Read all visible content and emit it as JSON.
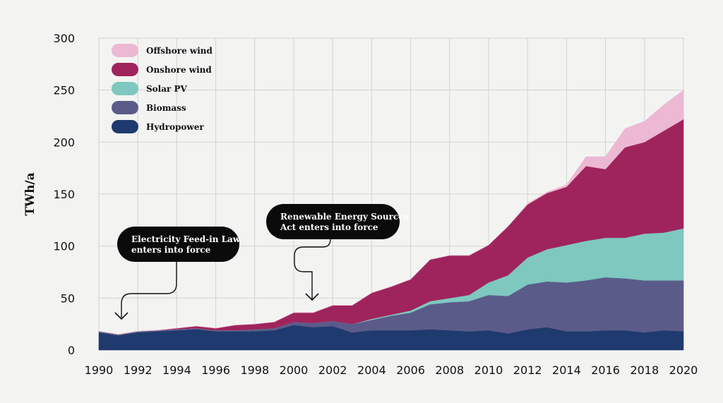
{
  "chart_data": {
    "type": "area",
    "stacked": true,
    "title": "",
    "xlabel": "",
    "ylabel": "TWh/a",
    "ylim": [
      0,
      300
    ],
    "xlim": [
      1990,
      2020
    ],
    "yticks": [
      0,
      50,
      100,
      150,
      200,
      250,
      300
    ],
    "xticks": [
      1990,
      1992,
      1994,
      1996,
      1998,
      2000,
      2002,
      2004,
      2006,
      2008,
      2010,
      2012,
      2014,
      2016,
      2018,
      2020
    ],
    "grid": true,
    "legend_position": "top-left",
    "x": [
      1990,
      1991,
      1992,
      1993,
      1994,
      1995,
      1996,
      1997,
      1998,
      1999,
      2000,
      2001,
      2002,
      2003,
      2004,
      2005,
      2006,
      2007,
      2008,
      2009,
      2010,
      2011,
      2012,
      2013,
      2014,
      2015,
      2016,
      2017,
      2018,
      2019,
      2020
    ],
    "series": [
      {
        "name": "Hydropower",
        "color": "#1f3a6e",
        "values": [
          17,
          14,
          17,
          18,
          19,
          20,
          18,
          18,
          18,
          19,
          24,
          22,
          23,
          17,
          19,
          19,
          19,
          20,
          19,
          18,
          19,
          16,
          20,
          22,
          18,
          18,
          19,
          19,
          17,
          19,
          18
        ]
      },
      {
        "name": "Biomass",
        "color": "#5b5b8a",
        "values": [
          1,
          1,
          1,
          1,
          1,
          1,
          1,
          1,
          2,
          2,
          3,
          4,
          5,
          8,
          10,
          14,
          17,
          24,
          27,
          29,
          34,
          36,
          43,
          44,
          47,
          49,
          51,
          50,
          50,
          48,
          49
        ]
      },
      {
        "name": "Solar PV",
        "color": "#7ec8bf",
        "values": [
          0,
          0,
          0,
          0,
          0,
          0,
          0,
          0,
          0,
          0,
          0,
          0,
          0,
          0,
          1,
          1,
          2,
          3,
          4,
          6,
          12,
          20,
          26,
          31,
          36,
          38,
          38,
          39,
          45,
          46,
          50
        ]
      },
      {
        "name": "Onshore wind",
        "color": "#a0245c",
        "values": [
          0,
          0,
          0,
          0,
          1,
          2,
          2,
          5,
          5,
          6,
          9,
          10,
          15,
          18,
          25,
          27,
          30,
          40,
          41,
          38,
          36,
          47,
          51,
          54,
          56,
          72,
          66,
          87,
          88,
          98,
          105
        ]
      },
      {
        "name": "Offshore wind",
        "color": "#ecb8d3",
        "values": [
          0,
          0,
          0,
          0,
          0,
          0,
          0,
          0,
          0,
          0,
          0,
          0,
          0,
          0,
          0,
          0,
          0,
          0,
          0,
          0,
          0,
          0,
          1,
          1,
          2,
          9,
          12,
          18,
          20,
          25,
          28
        ]
      }
    ],
    "annotations": [
      {
        "lines": [
          "Electricity Feed-in Law",
          "enters into force"
        ],
        "year": 1991
      },
      {
        "lines": [
          "Renewable Energy Sources",
          "Act enters into force"
        ],
        "year": 2001
      }
    ]
  }
}
